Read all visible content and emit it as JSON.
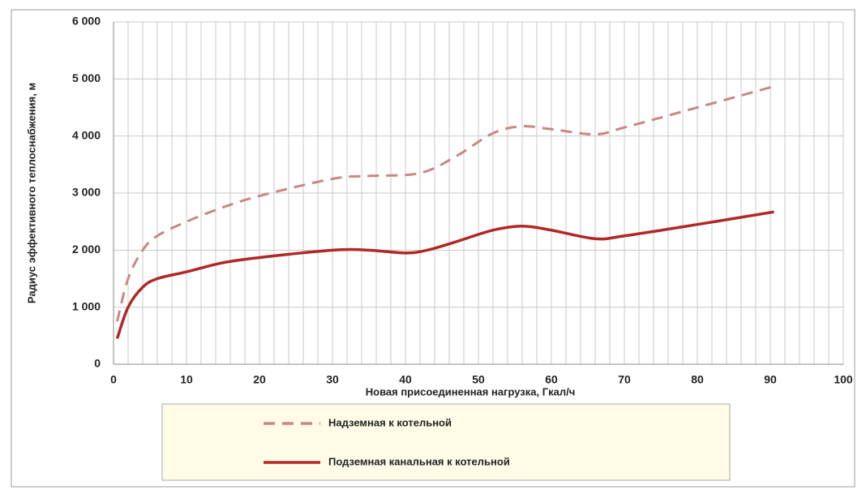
{
  "chart_data": {
    "type": "line",
    "x_label": "Новая присоединенная нагрузка, Гкал/ч",
    "y_label": "Радиус эффективного теплоснабжения, м",
    "xlim": [
      0,
      100
    ],
    "xticks": [
      0,
      10,
      20,
      30,
      40,
      50,
      60,
      70,
      80,
      90,
      100
    ],
    "ylim": [
      0,
      6000
    ],
    "yticks": [
      {
        "value": 0,
        "label": "0"
      },
      {
        "value": 1000,
        "label": "1 000"
      },
      {
        "value": 2000,
        "label": "2 000"
      },
      {
        "value": 3000,
        "label": "3 000"
      },
      {
        "value": 4000,
        "label": "4 000"
      },
      {
        "value": 5000,
        "label": "5 000"
      },
      {
        "value": 6000,
        "label": "6 000"
      }
    ],
    "grid": true,
    "series": [
      {
        "name": "Надземная к котельной",
        "color": "#c98787",
        "dashed": true,
        "x": [
          0.5,
          2,
          4,
          6,
          10,
          15,
          20,
          30,
          35,
          42,
          47,
          52,
          56,
          60,
          66,
          70,
          80,
          90.5
        ],
        "values": [
          750,
          1500,
          2000,
          2250,
          2500,
          2750,
          2950,
          3250,
          3300,
          3350,
          3650,
          4050,
          4170,
          4120,
          4030,
          4150,
          4500,
          4870
        ]
      },
      {
        "name": "Подземная канальная к котельной",
        "color": "#b02828",
        "dashed": false,
        "x": [
          0.5,
          2,
          4,
          6,
          10,
          15,
          20,
          30,
          35,
          40,
          43,
          47,
          52,
          56,
          60,
          66,
          70,
          80,
          90.5
        ],
        "values": [
          450,
          1000,
          1350,
          1500,
          1620,
          1780,
          1870,
          2000,
          2000,
          1950,
          2000,
          2150,
          2350,
          2420,
          2350,
          2200,
          2250,
          2450,
          2670
        ]
      }
    ]
  }
}
